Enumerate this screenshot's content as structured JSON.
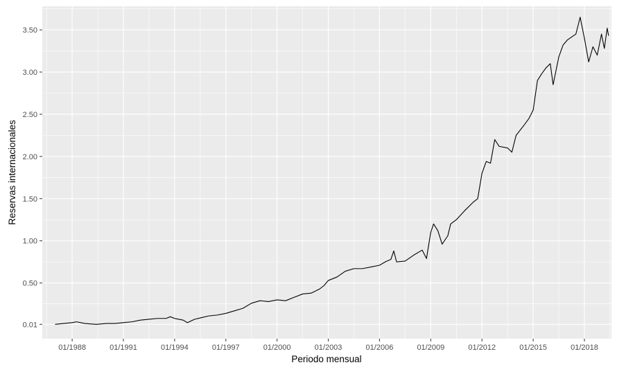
{
  "chart_data": {
    "type": "line",
    "xlabel": "Periodo mensual",
    "ylabel": "Reservas internacionales",
    "x_range": [
      "1986-04",
      "2019-08"
    ],
    "y_range": [
      -0.16,
      3.78
    ],
    "x_major_ticks": [
      {
        "date": "1988-01",
        "label": "01/1988"
      },
      {
        "date": "1991-01",
        "label": "01/1991"
      },
      {
        "date": "1994-01",
        "label": "01/1994"
      },
      {
        "date": "1997-01",
        "label": "01/1997"
      },
      {
        "date": "2000-01",
        "label": "01/2000"
      },
      {
        "date": "2003-01",
        "label": "01/2003"
      },
      {
        "date": "2006-01",
        "label": "01/2006"
      },
      {
        "date": "2009-01",
        "label": "01/2009"
      },
      {
        "date": "2012-01",
        "label": "01/2012"
      },
      {
        "date": "2015-01",
        "label": "01/2015"
      },
      {
        "date": "2018-01",
        "label": "01/2018"
      }
    ],
    "y_major_ticks": [
      {
        "value": 0.01,
        "label": "0.01"
      },
      {
        "value": 0.5,
        "label": "0.50"
      },
      {
        "value": 1.0,
        "label": "1.00"
      },
      {
        "value": 1.5,
        "label": "1.50"
      },
      {
        "value": 2.0,
        "label": "2.00"
      },
      {
        "value": 2.5,
        "label": "2.50"
      },
      {
        "value": 3.0,
        "label": "3.00"
      },
      {
        "value": 3.5,
        "label": "3.50"
      }
    ],
    "grid": true,
    "legend": "none",
    "colors": {
      "panel": "#ebebeb",
      "grid": "#ffffff",
      "line": "#000000",
      "tick_text": "#4d4d4d",
      "title_text": "#000000"
    },
    "series": [
      {
        "points": [
          [
            "1987-01",
            0.01
          ],
          [
            "1987-07",
            0.02
          ],
          [
            "1988-01",
            0.03
          ],
          [
            "1988-04",
            0.04
          ],
          [
            "1988-10",
            0.02
          ],
          [
            "1989-06",
            0.01
          ],
          [
            "1990-01",
            0.02
          ],
          [
            "1990-07",
            0.02
          ],
          [
            "1991-01",
            0.03
          ],
          [
            "1991-07",
            0.04
          ],
          [
            "1992-01",
            0.06
          ],
          [
            "1992-07",
            0.07
          ],
          [
            "1993-01",
            0.08
          ],
          [
            "1993-07",
            0.08
          ],
          [
            "1993-10",
            0.1
          ],
          [
            "1994-01",
            0.08
          ],
          [
            "1994-07",
            0.06
          ],
          [
            "1994-10",
            0.03
          ],
          [
            "1995-03",
            0.07
          ],
          [
            "1995-08",
            0.09
          ],
          [
            "1996-01",
            0.11
          ],
          [
            "1996-07",
            0.12
          ],
          [
            "1997-01",
            0.14
          ],
          [
            "1997-07",
            0.17
          ],
          [
            "1998-01",
            0.2
          ],
          [
            "1998-07",
            0.26
          ],
          [
            "1999-01",
            0.29
          ],
          [
            "1999-07",
            0.28
          ],
          [
            "2000-01",
            0.3
          ],
          [
            "2000-07",
            0.29
          ],
          [
            "2001-01",
            0.33
          ],
          [
            "2001-07",
            0.37
          ],
          [
            "2002-01",
            0.38
          ],
          [
            "2002-07",
            0.43
          ],
          [
            "2002-10",
            0.47
          ],
          [
            "2003-01",
            0.53
          ],
          [
            "2003-07",
            0.57
          ],
          [
            "2004-01",
            0.64
          ],
          [
            "2004-07",
            0.67
          ],
          [
            "2005-01",
            0.67
          ],
          [
            "2005-07",
            0.69
          ],
          [
            "2006-01",
            0.71
          ],
          [
            "2006-05",
            0.75
          ],
          [
            "2006-09",
            0.78
          ],
          [
            "2006-11",
            0.88
          ],
          [
            "2007-01",
            0.75
          ],
          [
            "2007-07",
            0.76
          ],
          [
            "2008-01",
            0.83
          ],
          [
            "2008-07",
            0.89
          ],
          [
            "2008-10",
            0.79
          ],
          [
            "2009-01",
            1.1
          ],
          [
            "2009-03",
            1.2
          ],
          [
            "2009-06",
            1.12
          ],
          [
            "2009-09",
            0.96
          ],
          [
            "2010-01",
            1.06
          ],
          [
            "2010-03",
            1.2
          ],
          [
            "2010-07",
            1.25
          ],
          [
            "2011-01",
            1.36
          ],
          [
            "2011-07",
            1.46
          ],
          [
            "2011-10",
            1.5
          ],
          [
            "2012-01",
            1.8
          ],
          [
            "2012-04",
            1.94
          ],
          [
            "2012-07",
            1.92
          ],
          [
            "2012-10",
            2.2
          ],
          [
            "2013-01",
            2.12
          ],
          [
            "2013-07",
            2.1
          ],
          [
            "2013-10",
            2.05
          ],
          [
            "2014-01",
            2.25
          ],
          [
            "2014-07",
            2.38
          ],
          [
            "2014-10",
            2.45
          ],
          [
            "2015-01",
            2.55
          ],
          [
            "2015-04",
            2.9
          ],
          [
            "2015-07",
            2.98
          ],
          [
            "2015-10",
            3.05
          ],
          [
            "2016-01",
            3.1
          ],
          [
            "2016-03",
            2.85
          ],
          [
            "2016-07",
            3.18
          ],
          [
            "2016-10",
            3.32
          ],
          [
            "2017-01",
            3.38
          ],
          [
            "2017-07",
            3.45
          ],
          [
            "2017-10",
            3.65
          ],
          [
            "2018-01",
            3.4
          ],
          [
            "2018-04",
            3.12
          ],
          [
            "2018-07",
            3.3
          ],
          [
            "2018-10",
            3.2
          ],
          [
            "2019-01",
            3.45
          ],
          [
            "2019-03",
            3.28
          ],
          [
            "2019-05",
            3.52
          ],
          [
            "2019-06",
            3.43
          ]
        ]
      }
    ]
  }
}
